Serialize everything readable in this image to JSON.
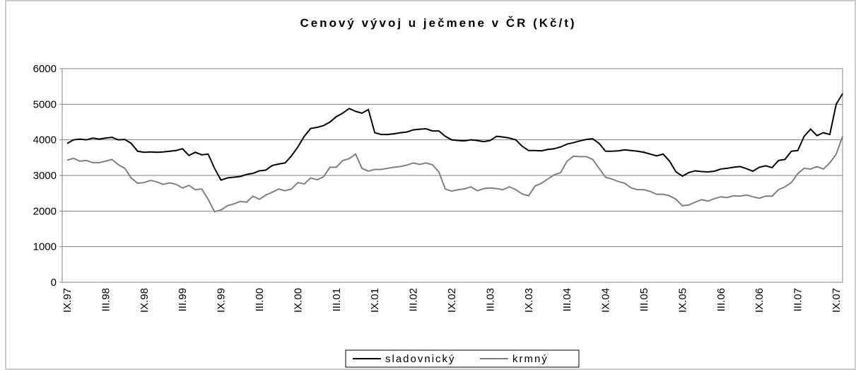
{
  "chart_data": {
    "type": "line",
    "title": "Cenový vývoj u ječmene v ČR (Kč/t)",
    "categories": [
      "IX.97",
      null,
      null,
      null,
      null,
      null,
      "III.98",
      null,
      null,
      null,
      null,
      null,
      "IX.98",
      null,
      null,
      null,
      null,
      null,
      "III.99",
      null,
      null,
      null,
      null,
      null,
      "IX.99",
      null,
      null,
      null,
      null,
      null,
      "III.00",
      null,
      null,
      null,
      null,
      null,
      "IX.00",
      null,
      null,
      null,
      null,
      null,
      "III.01",
      null,
      null,
      null,
      null,
      null,
      "IX.01",
      null,
      null,
      null,
      null,
      null,
      "III.02",
      null,
      null,
      null,
      null,
      null,
      "IX.02",
      null,
      null,
      null,
      null,
      null,
      "III.03",
      null,
      null,
      null,
      null,
      null,
      "IX.03",
      null,
      null,
      null,
      null,
      null,
      "III.04",
      null,
      null,
      null,
      null,
      null,
      "IX.04",
      null,
      null,
      null,
      null,
      null,
      "III.05",
      null,
      null,
      null,
      null,
      null,
      "IX.05",
      null,
      null,
      null,
      null,
      null,
      "III.06",
      null,
      null,
      null,
      null,
      null,
      "IX.06",
      null,
      null,
      null,
      null,
      null,
      "III.07",
      null,
      null,
      null,
      null,
      null,
      "IX.07",
      null
    ],
    "series": [
      {
        "name": "sladovnický",
        "color": "#000000",
        "values": [
          3900,
          4000,
          4020,
          4000,
          4050,
          4020,
          4050,
          4070,
          4000,
          4010,
          3900,
          3680,
          3650,
          3660,
          3650,
          3660,
          3680,
          3700,
          3750,
          3560,
          3650,
          3580,
          3600,
          3200,
          2870,
          2930,
          2950,
          2970,
          3030,
          3060,
          3130,
          3150,
          3280,
          3320,
          3350,
          3550,
          3800,
          4100,
          4320,
          4350,
          4400,
          4500,
          4650,
          4750,
          4880,
          4800,
          4750,
          4850,
          4200,
          4150,
          4150,
          4170,
          4200,
          4220,
          4280,
          4300,
          4310,
          4250,
          4250,
          4100,
          4000,
          3980,
          3970,
          4000,
          3980,
          3950,
          3980,
          4100,
          4080,
          4050,
          4000,
          3820,
          3700,
          3700,
          3690,
          3730,
          3750,
          3800,
          3880,
          3920,
          3970,
          4010,
          4030,
          3900,
          3680,
          3680,
          3690,
          3720,
          3700,
          3680,
          3650,
          3600,
          3550,
          3600,
          3400,
          3100,
          2980,
          3080,
          3130,
          3110,
          3100,
          3120,
          3180,
          3200,
          3230,
          3250,
          3190,
          3120,
          3230,
          3270,
          3220,
          3420,
          3450,
          3680,
          3700,
          4100,
          4300,
          4120,
          4200,
          4150,
          5000,
          5300
        ]
      },
      {
        "name": "krmný",
        "color": "#808080",
        "values": [
          3430,
          3480,
          3400,
          3420,
          3360,
          3360,
          3400,
          3450,
          3300,
          3200,
          2930,
          2780,
          2800,
          2860,
          2820,
          2750,
          2790,
          2750,
          2650,
          2720,
          2600,
          2620,
          2330,
          1980,
          2030,
          2150,
          2200,
          2270,
          2250,
          2420,
          2330,
          2450,
          2530,
          2620,
          2570,
          2620,
          2800,
          2760,
          2930,
          2880,
          2960,
          3230,
          3230,
          3420,
          3470,
          3600,
          3200,
          3120,
          3170,
          3170,
          3200,
          3230,
          3250,
          3290,
          3350,
          3310,
          3350,
          3300,
          3100,
          2620,
          2560,
          2600,
          2620,
          2680,
          2570,
          2630,
          2650,
          2630,
          2600,
          2680,
          2600,
          2480,
          2430,
          2700,
          2780,
          2900,
          3020,
          3080,
          3400,
          3540,
          3530,
          3530,
          3450,
          3200,
          2950,
          2900,
          2830,
          2780,
          2650,
          2600,
          2600,
          2550,
          2470,
          2470,
          2430,
          2330,
          2150,
          2170,
          2250,
          2320,
          2280,
          2350,
          2400,
          2380,
          2430,
          2420,
          2450,
          2400,
          2360,
          2420,
          2420,
          2600,
          2680,
          2800,
          3050,
          3200,
          3180,
          3250,
          3180,
          3350,
          3600,
          4100
        ]
      }
    ],
    "ylim": [
      0,
      6000
    ],
    "yticks": [
      0,
      1000,
      2000,
      3000,
      4000,
      5000,
      6000
    ],
    "grid": true,
    "legend": "bottom"
  }
}
